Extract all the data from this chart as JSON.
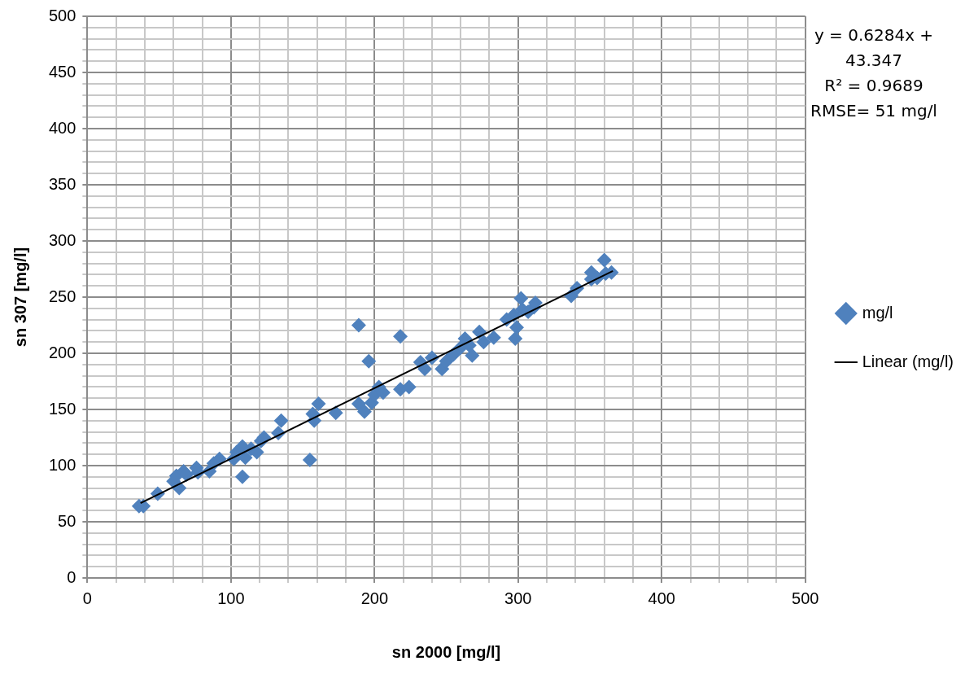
{
  "chart_data": {
    "type": "scatter",
    "xlabel": "sn 2000 [mg/l]",
    "ylabel": "sn 307 [mg/l]",
    "annotations": [
      "y = 0.6284x + 43.347",
      "R² = 0.9689",
      "RMSE= 51 mg/l"
    ],
    "xlim": [
      0,
      500
    ],
    "xticks": [
      0,
      {
        "value": 20,
        "label": null
      },
      {
        "value": 40,
        "label": null
      },
      {
        "value": 60,
        "label": null
      },
      {
        "value": 80,
        "label": null
      },
      100,
      {
        "value": 120,
        "label": null
      },
      {
        "value": 140,
        "label": null
      },
      {
        "value": 160,
        "label": null
      },
      {
        "value": 180,
        "label": null
      },
      200,
      {
        "value": 220,
        "label": null
      },
      {
        "value": 240,
        "label": null
      },
      {
        "value": 260,
        "label": null
      },
      {
        "value": 280,
        "label": null
      },
      300,
      {
        "value": 320,
        "label": null
      },
      {
        "value": 340,
        "label": null
      },
      {
        "value": 360,
        "label": null
      },
      {
        "value": 380,
        "label": null
      },
      400,
      {
        "value": 420,
        "label": null
      },
      {
        "value": 440,
        "label": null
      },
      {
        "value": 460,
        "label": null
      },
      {
        "value": 480,
        "label": null
      },
      500
    ],
    "ylim": [
      0,
      500
    ],
    "yticks": [
      0,
      {
        "value": 10,
        "label": null
      },
      {
        "value": 20,
        "label": null
      },
      {
        "value": 30,
        "label": null
      },
      {
        "value": 40,
        "label": null
      },
      50,
      {
        "value": 60,
        "label": null
      },
      {
        "value": 70,
        "label": null
      },
      {
        "value": 80,
        "label": null
      },
      {
        "value": 90,
        "label": null
      },
      100,
      {
        "value": 110,
        "label": null
      },
      {
        "value": 120,
        "label": null
      },
      {
        "value": 130,
        "label": null
      },
      {
        "value": 140,
        "label": null
      },
      150,
      {
        "value": 160,
        "label": null
      },
      {
        "value": 170,
        "label": null
      },
      {
        "value": 180,
        "label": null
      },
      {
        "value": 190,
        "label": null
      },
      200,
      {
        "value": 210,
        "label": null
      },
      {
        "value": 220,
        "label": null
      },
      {
        "value": 230,
        "label": null
      },
      {
        "value": 240,
        "label": null
      },
      250,
      {
        "value": 260,
        "label": null
      },
      {
        "value": 270,
        "label": null
      },
      {
        "value": 280,
        "label": null
      },
      {
        "value": 290,
        "label": null
      },
      300,
      {
        "value": 310,
        "label": null
      },
      {
        "value": 320,
        "label": null
      },
      {
        "value": 330,
        "label": null
      },
      {
        "value": 340,
        "label": null
      },
      350,
      {
        "value": 360,
        "label": null
      },
      {
        "value": 370,
        "label": null
      },
      {
        "value": 380,
        "label": null
      },
      {
        "value": 390,
        "label": null
      },
      400,
      {
        "value": 410,
        "label": null
      },
      {
        "value": 420,
        "label": null
      },
      {
        "value": 430,
        "label": null
      },
      {
        "value": 440,
        "label": null
      },
      450,
      {
        "value": 460,
        "label": null
      },
      {
        "value": 470,
        "label": null
      },
      {
        "value": 480,
        "label": null
      },
      {
        "value": 490,
        "label": null
      },
      500
    ],
    "grid": true,
    "legend": "right",
    "marker": "diamond",
    "series": [
      {
        "name": "mg/l",
        "color": "#4f81bd",
        "x": [
          36,
          39,
          49,
          62,
          60,
          64,
          67,
          69,
          76,
          77,
          85,
          88,
          92,
          102,
          104,
          108,
          108,
          110,
          114,
          118,
          121,
          123,
          133,
          135,
          155,
          157,
          158,
          161,
          173,
          189,
          189,
          193,
          196,
          198,
          200,
          203,
          206,
          218,
          218,
          224,
          232,
          235,
          240,
          247,
          250,
          255,
          260,
          263,
          266,
          268,
          273,
          276,
          283,
          292,
          297,
          298,
          299,
          302,
          303,
          307,
          311,
          312,
          337,
          341,
          351,
          351,
          355,
          360,
          361,
          365
        ],
        "values": [
          64,
          64,
          75,
          91,
          86,
          80,
          95,
          92,
          98,
          94,
          95,
          102,
          106,
          106,
          112,
          117,
          90,
          107,
          115,
          112,
          122,
          125,
          129,
          140,
          105,
          146,
          140,
          155,
          147,
          225,
          155,
          148,
          193,
          156,
          163,
          170,
          165,
          215,
          168,
          170,
          192,
          186,
          196,
          186,
          193,
          199,
          205,
          213,
          207,
          198,
          219,
          210,
          214,
          230,
          234,
          213,
          223,
          249,
          239,
          237,
          241,
          245,
          251,
          258,
          266,
          272,
          267,
          283,
          271,
          272
        ]
      },
      {
        "name": "Linear (mg/l)",
        "type": "line",
        "color": "#000000",
        "marker": "none",
        "x": [
          37,
          366
        ],
        "values": [
          66.6,
          273.3
        ]
      }
    ]
  }
}
